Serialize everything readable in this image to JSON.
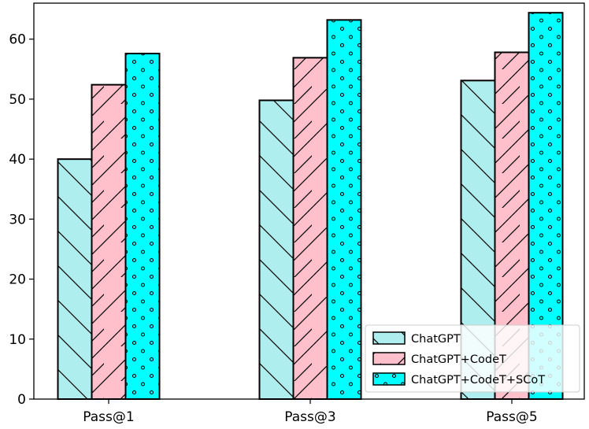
{
  "chart_data": {
    "type": "bar",
    "title": "",
    "xlabel": "",
    "ylabel": "",
    "categories": [
      "Pass@1",
      "Pass@3",
      "Pass@5"
    ],
    "series": [
      {
        "name": "ChatGPT",
        "values": [
          40.0,
          49.8,
          53.1
        ],
        "color": "#afeeee",
        "hatch": "backslash"
      },
      {
        "name": "ChatGPT+CodeT",
        "values": [
          52.4,
          56.9,
          57.8
        ],
        "color": "#ffc0cb",
        "hatch": "slash"
      },
      {
        "name": "ChatGPT+CodeT+SCoT",
        "values": [
          57.6,
          63.2,
          64.4
        ],
        "color": "#00ffff",
        "hatch": "dots"
      }
    ],
    "ylim": [
      0,
      66
    ],
    "yticks": [
      0,
      10,
      20,
      30,
      40,
      50,
      60
    ],
    "grid": false,
    "legend_position": "lower-right"
  }
}
